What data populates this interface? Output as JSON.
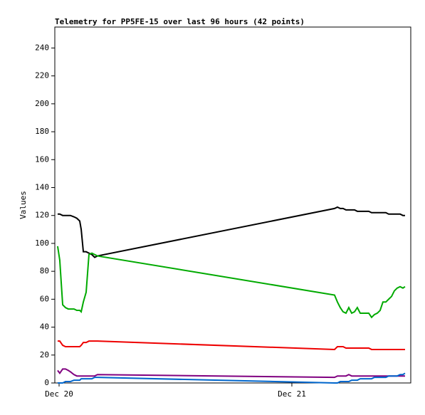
{
  "chart_data": {
    "type": "line",
    "title": "Telemetry for PP5FE-15 over last 96 hours (42 points)",
    "y_label": "Values",
    "x": [
      -0.15,
      0.07,
      0.37,
      0.66,
      0.95,
      1.17,
      1.54,
      1.83,
      2.13,
      2.28,
      2.5,
      2.79,
      3.08,
      3.38,
      3.67,
      3.96,
      28.4,
      28.7,
      28.99,
      29.28,
      29.58,
      29.87,
      30.17,
      30.46,
      30.75,
      31.05,
      31.34,
      31.63,
      31.93,
      32.22,
      32.51,
      32.81,
      33.1,
      33.39,
      33.69,
      33.98,
      34.28,
      34.57,
      34.86,
      35.16,
      35.45,
      35.67
    ],
    "series": [
      {
        "color": "#000000",
        "values": [
          121,
          121,
          120,
          120,
          120,
          120,
          119,
          118,
          116,
          110,
          94,
          94,
          93,
          92,
          90,
          91,
          125,
          126,
          125,
          125,
          124,
          124,
          124,
          124,
          123,
          123,
          123,
          123,
          123,
          122,
          122,
          122,
          122,
          122,
          122,
          121,
          121,
          121,
          121,
          121,
          120,
          120
        ]
      },
      {
        "color": "#00aa00",
        "values": [
          98,
          88,
          56,
          54,
          53,
          53,
          53,
          52,
          52,
          51,
          58,
          65,
          92,
          93,
          92,
          91,
          63,
          58,
          54,
          51,
          50,
          54,
          50,
          51,
          54,
          50,
          50,
          50,
          50,
          47,
          49,
          50,
          52,
          58,
          58,
          60,
          62,
          66,
          68,
          69,
          68,
          69
        ]
      },
      {
        "color": "#ee0000",
        "values": [
          30,
          30,
          27,
          26,
          26,
          26,
          26,
          26,
          26,
          27,
          29,
          29,
          30,
          30,
          30,
          30,
          24,
          26,
          26,
          26,
          25,
          25,
          25,
          25,
          25,
          25,
          25,
          25,
          25,
          24,
          24,
          24,
          24,
          24,
          24,
          24,
          24,
          24,
          24,
          24,
          24,
          24
        ]
      },
      {
        "color": "#800080",
        "values": [
          9,
          7,
          10,
          10,
          9,
          8,
          6,
          5,
          5,
          5,
          5,
          5,
          5,
          5,
          5,
          6,
          4,
          5,
          5,
          5,
          5,
          6,
          5,
          5,
          5,
          5,
          5,
          5,
          5,
          5,
          5,
          5,
          5,
          5,
          5,
          5,
          5,
          5,
          5,
          5,
          5,
          5
        ]
      },
      {
        "color": "#0066cc",
        "values": [
          0,
          0,
          0,
          1,
          1,
          1,
          2,
          2,
          2,
          3,
          3,
          3,
          3,
          3,
          4,
          4,
          0,
          0,
          1,
          1,
          1,
          1,
          2,
          2,
          2,
          3,
          3,
          3,
          3,
          3,
          4,
          4,
          4,
          4,
          4,
          5,
          5,
          5,
          5,
          6,
          6,
          7
        ]
      }
    ],
    "xlim": [
      -0.44,
      36.26
    ],
    "xticks": [
      {
        "value": 0,
        "label": "Dec 20"
      },
      {
        "value": 24,
        "label": "Dec 21"
      }
    ],
    "ylim": [
      0,
      255
    ],
    "yticks": [
      0,
      20,
      40,
      60,
      80,
      100,
      120,
      140,
      160,
      180,
      200,
      220,
      240
    ]
  }
}
